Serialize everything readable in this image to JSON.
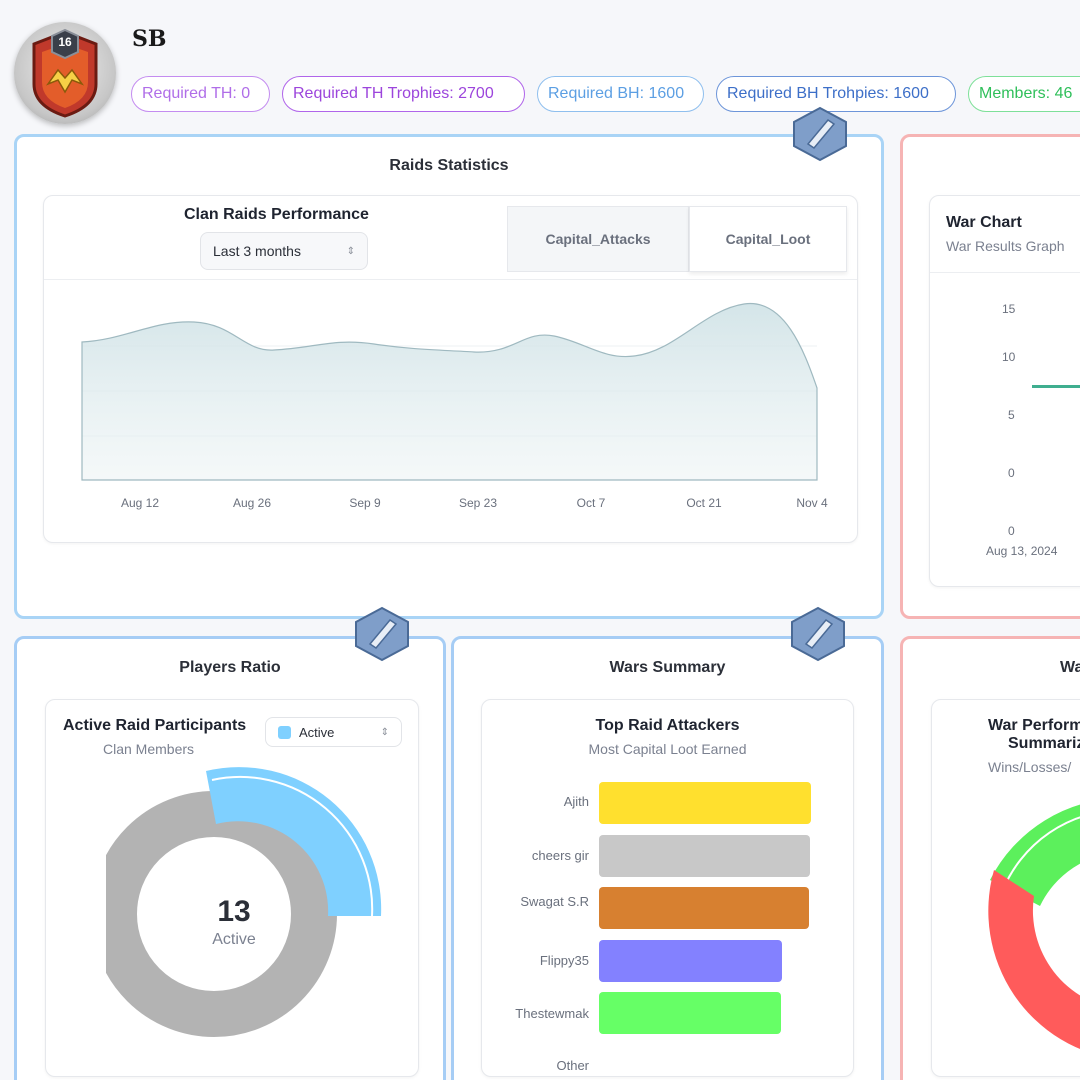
{
  "header": {
    "clan_name": "SB",
    "badge_level": "16",
    "pills": [
      "Required TH: 0",
      "Required TH Trophies: 2700",
      "Required BH: 1600",
      "Required BH Trohpies: 1600",
      "Members: 46"
    ]
  },
  "raids": {
    "panel_title": "Raids Statistics",
    "chart_title": "Clan Raids Performance",
    "range_select": "Last 3 months",
    "tabs": [
      "Capital_Attacks",
      "Capital_Loot"
    ]
  },
  "war": {
    "title": "War Chart",
    "subtitle": "War Results Graph"
  },
  "players": {
    "panel_title": "Players Ratio",
    "card_title": "Active Raid Participants",
    "card_subtitle": "Clan Members",
    "legend_select": "Active",
    "center_value": "13",
    "center_label": "Active"
  },
  "summary": {
    "panel_title": "Wars Summary",
    "card_title": "Top Raid Attackers",
    "card_subtitle": "Most Capital Loot Earned"
  },
  "perf": {
    "panel_title": "Wa",
    "card_title_1": "War Perform",
    "card_title_2": "Summariz",
    "card_subtitle": "Wins/Losses/"
  },
  "chart_data": [
    {
      "type": "area",
      "title": "Clan Raids Performance",
      "x": [
        "Aug 12",
        "Aug 26",
        "Sep 9",
        "Sep 23",
        "Oct 7",
        "Oct 21",
        "Nov 4"
      ],
      "series": [
        {
          "name": "Capital_Attacks",
          "values": [
            0.72,
            0.69,
            0.7,
            0.71,
            0.7,
            0.76,
            0.63
          ]
        }
      ]
    },
    {
      "type": "line",
      "title": "War Chart",
      "y_ticks": [
        "15",
        "10",
        "5",
        "0",
        "0"
      ],
      "x": [
        "Aug 13, 2024"
      ],
      "series": [
        {
          "name": "War Results",
          "values": [
            8
          ]
        }
      ]
    },
    {
      "type": "pie",
      "title": "Active Raid Participants",
      "categories": [
        "Active",
        "Inactive"
      ],
      "values": [
        13,
        33
      ],
      "colors": [
        "#7fd0ff",
        "#b3b3b3"
      ]
    },
    {
      "type": "bar",
      "title": "Top Raid Attackers",
      "categories": [
        "Ajith",
        "cheers gir",
        "Swagat S.R",
        "Flippy35",
        "Thestewmak",
        "Other"
      ],
      "values": [
        100,
        99,
        98,
        87,
        86,
        0
      ],
      "colors": [
        "#ffe02e",
        "#c8c8c8",
        "#d78030",
        "#8381ff",
        "#66ff66",
        "#cccccc"
      ]
    },
    {
      "type": "pie",
      "title": "War Performance Summarized",
      "categories": [
        "Wins",
        "Losses"
      ],
      "values": [
        30,
        70
      ],
      "colors": [
        "#5cf05c",
        "#ff5b5b"
      ]
    }
  ]
}
